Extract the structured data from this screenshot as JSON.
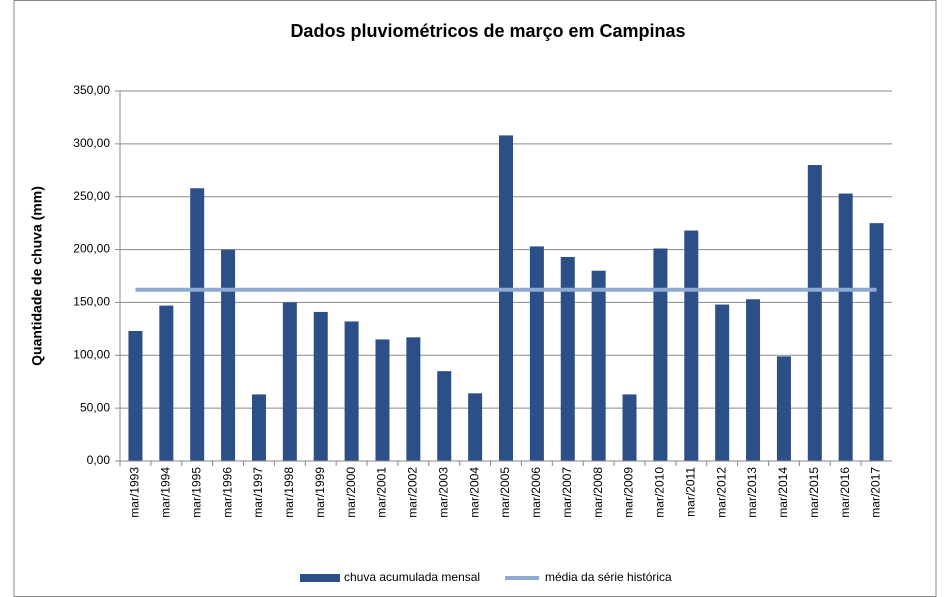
{
  "chart_data": {
    "type": "bar",
    "title": "Dados pluviométricos de março em Campinas",
    "y_label": "Quantidade de chuva (mm)",
    "categories": [
      "mar/1993",
      "mar/1994",
      "mar/1995",
      "mar/1996",
      "mar/1997",
      "mar/1998",
      "mar/1999",
      "mar/2000",
      "mar/2001",
      "mar/2002",
      "mar/2003",
      "mar/2004",
      "mar/2005",
      "mar/2006",
      "mar/2007",
      "mar/2008",
      "mar/2009",
      "mar/2010",
      "mar/2011",
      "mar/2012",
      "mar/2013",
      "mar/2014",
      "mar/2015",
      "mar/2016",
      "mar/2017"
    ],
    "series": [
      {
        "name": "chuva acumulada mensal",
        "type": "bar",
        "color": "#2b4f86",
        "values": [
          123,
          147,
          258,
          200,
          63,
          150,
          141,
          132,
          115,
          117,
          85,
          64,
          308,
          203,
          193,
          180,
          63,
          201,
          218,
          148,
          153,
          99,
          280,
          253,
          225
        ]
      },
      {
        "name": "média da série histórica",
        "type": "line",
        "color": "#8eaad3",
        "values": [
          162,
          162,
          162,
          162,
          162,
          162,
          162,
          162,
          162,
          162,
          162,
          162,
          162,
          162,
          162,
          162,
          162,
          162,
          162,
          162,
          162,
          162,
          162,
          162,
          162
        ]
      }
    ],
    "ylim": [
      0,
      350
    ],
    "yticks": [
      {
        "value": 0,
        "label": "0,00"
      },
      {
        "value": 50,
        "label": "50,00"
      },
      {
        "value": 100,
        "label": "100,00"
      },
      {
        "value": 150,
        "label": "150,00"
      },
      {
        "value": 200,
        "label": "200,00"
      },
      {
        "value": 250,
        "label": "250,00"
      },
      {
        "value": 300,
        "label": "300,00"
      },
      {
        "value": 350,
        "label": "350,00"
      }
    ],
    "grid": true,
    "legend": "bottom"
  }
}
